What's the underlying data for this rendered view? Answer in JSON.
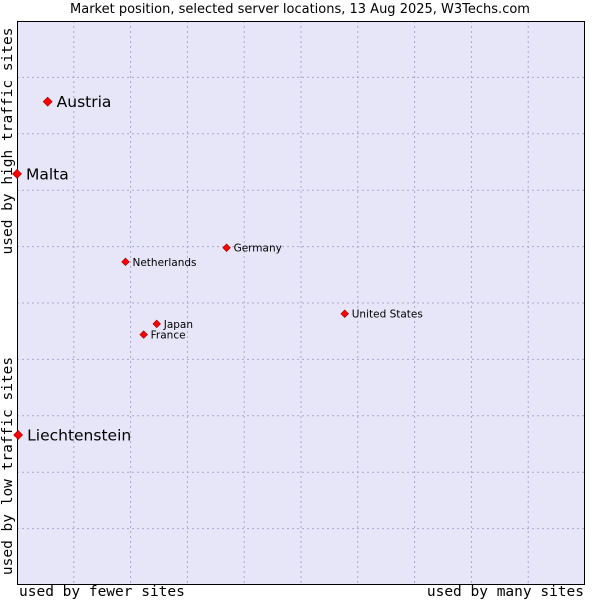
{
  "chart_data": {
    "type": "scatter",
    "title": "Market position, selected server locations, 13 Aug 2025, W3Techs.com",
    "xlabel_low": "used by fewer sites",
    "xlabel_high": "used by many sites",
    "ylabel_low": "used by low traffic sites",
    "ylabel_high": "used by high traffic sites",
    "xlim": [
      0,
      100
    ],
    "ylim": [
      0,
      100
    ],
    "grid": true,
    "colors": {
      "plot_bg": "#e6e6f8",
      "grid": "#a9a9cc",
      "point": "#ff0000",
      "point_edge": "#990000"
    },
    "points": [
      {
        "label": "Austria",
        "x": 5.4,
        "y": 85.7,
        "size": "large"
      },
      {
        "label": "Malta",
        "x": 0.0,
        "y": 72.9,
        "size": "large"
      },
      {
        "label": "Germany",
        "x": 36.9,
        "y": 59.8,
        "size": "small"
      },
      {
        "label": "Netherlands",
        "x": 19.1,
        "y": 57.3,
        "size": "small"
      },
      {
        "label": "United States",
        "x": 57.7,
        "y": 48.1,
        "size": "small"
      },
      {
        "label": "Japan",
        "x": 24.6,
        "y": 46.3,
        "size": "small"
      },
      {
        "label": "France",
        "x": 22.3,
        "y": 44.4,
        "size": "small"
      },
      {
        "label": "Liechtenstein",
        "x": 0.2,
        "y": 26.6,
        "size": "large"
      }
    ]
  }
}
